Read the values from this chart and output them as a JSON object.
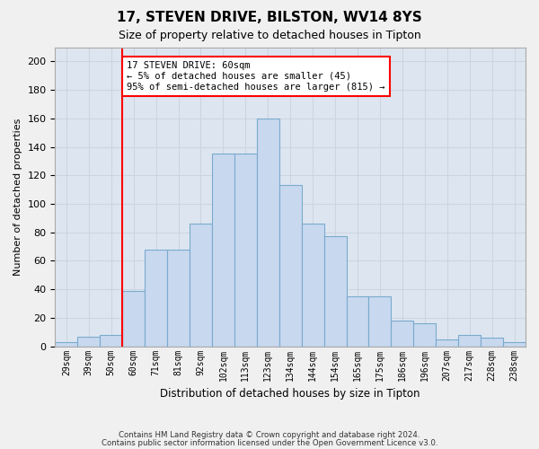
{
  "title": "17, STEVEN DRIVE, BILSTON, WV14 8YS",
  "subtitle": "Size of property relative to detached houses in Tipton",
  "xlabel": "Distribution of detached houses by size in Tipton",
  "ylabel": "Number of detached properties",
  "bar_color": "#c8d8ee",
  "bar_edge_color": "#7aaace",
  "categories": [
    "29sqm",
    "39sqm",
    "50sqm",
    "60sqm",
    "71sqm",
    "81sqm",
    "92sqm",
    "102sqm",
    "113sqm",
    "123sqm",
    "134sqm",
    "144sqm",
    "154sqm",
    "165sqm",
    "175sqm",
    "186sqm",
    "196sqm",
    "207sqm",
    "217sqm",
    "228sqm",
    "238sqm"
  ],
  "bar_heights": [
    3,
    7,
    8,
    39,
    68,
    68,
    86,
    135,
    135,
    160,
    113,
    86,
    77,
    35,
    35,
    18,
    16,
    5,
    8,
    6,
    3
  ],
  "annotation_text": "17 STEVEN DRIVE: 60sqm\n← 5% of detached houses are smaller (45)\n95% of semi-detached houses are larger (815) →",
  "vline_index": 3,
  "annotation_box_color": "white",
  "annotation_box_edge_color": "red",
  "grid_color": "#ccd4e0",
  "background_color": "#dde6f0",
  "footer_line1": "Contains HM Land Registry data © Crown copyright and database right 2024.",
  "footer_line2": "Contains public sector information licensed under the Open Government Licence v3.0.",
  "ylim": [
    0,
    210
  ],
  "yticks": [
    0,
    20,
    40,
    60,
    80,
    100,
    120,
    140,
    160,
    180,
    200
  ]
}
